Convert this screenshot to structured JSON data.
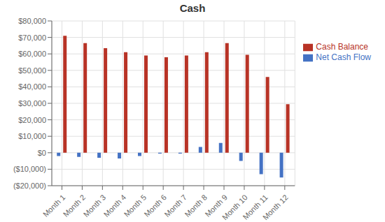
{
  "chart_data": {
    "type": "bar",
    "title": "Cash",
    "categories": [
      "Month 1",
      "Month 2",
      "Month 3",
      "Month 4",
      "Month 5",
      "Month 6",
      "Month 7",
      "Month 8",
      "Month 9",
      "Month 10",
      "Month 11",
      "Month 12"
    ],
    "series": [
      {
        "name": "Net Cash Flow",
        "color": "#4472C4",
        "values": [
          -2000,
          -2500,
          -3000,
          -3500,
          -2000,
          -500,
          -500,
          3500,
          6000,
          -5000,
          -13000,
          -15000
        ]
      },
      {
        "name": "Cash Balance",
        "color": "#B83326",
        "values": [
          71000,
          66500,
          63500,
          61000,
          59000,
          58000,
          59000,
          61000,
          66500,
          59500,
          46000,
          29500
        ]
      }
    ],
    "ylim": [
      -20000,
      80000
    ],
    "yticks": [
      {
        "value": -20000,
        "label": "($20,000)"
      },
      {
        "value": -10000,
        "label": "($10,000)"
      },
      {
        "value": 0,
        "label": "$0"
      },
      {
        "value": 10000,
        "label": "$10,000"
      },
      {
        "value": 20000,
        "label": "$20,000"
      },
      {
        "value": 30000,
        "label": "$30,000"
      },
      {
        "value": 40000,
        "label": "$40,000"
      },
      {
        "value": 50000,
        "label": "$50,000"
      },
      {
        "value": 60000,
        "label": "$60,000"
      },
      {
        "value": 70000,
        "label": "$70,000"
      },
      {
        "value": 80000,
        "label": "$80,000"
      }
    ],
    "grid": true,
    "legend": "right"
  }
}
